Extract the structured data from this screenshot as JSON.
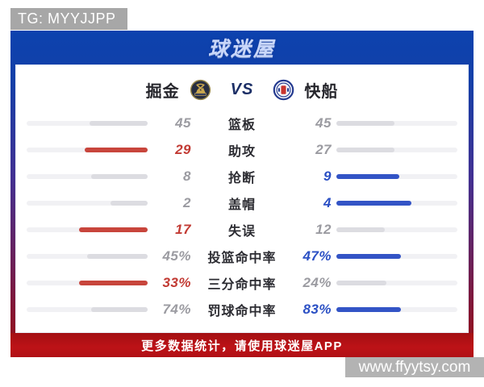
{
  "page": {
    "tg_tag": "TG: MYYJJPP",
    "watermark": "www.ffyytsy.com"
  },
  "header": {
    "logo_text": "球迷屋"
  },
  "match": {
    "home_team": "掘金",
    "vs_label": "VS",
    "away_team": "快船",
    "home_logo_icon": "nuggets-logo",
    "away_logo_icon": "clippers-logo"
  },
  "stats": {
    "rows": [
      {
        "label": "篮板",
        "left": "45",
        "right": "45",
        "left_fill": 48,
        "right_fill": 48,
        "left_state": "neutral",
        "right_state": "neutral"
      },
      {
        "label": "助攻",
        "left": "29",
        "right": "27",
        "left_fill": 52,
        "right_fill": 48,
        "left_state": "win",
        "right_state": "neutral"
      },
      {
        "label": "抢断",
        "left": "8",
        "right": "9",
        "left_fill": 47,
        "right_fill": 52,
        "left_state": "neutral",
        "right_state": "win"
      },
      {
        "label": "盖帽",
        "left": "2",
        "right": "4",
        "left_fill": 31,
        "right_fill": 62,
        "left_state": "neutral",
        "right_state": "win"
      },
      {
        "label": "失误",
        "left": "17",
        "right": "12",
        "left_fill": 57,
        "right_fill": 40,
        "left_state": "win",
        "right_state": "neutral"
      },
      {
        "label": "投篮命中率",
        "left": "45%",
        "right": "47%",
        "left_fill": 50,
        "right_fill": 53,
        "left_state": "neutral",
        "right_state": "win"
      },
      {
        "label": "三分命中率",
        "left": "33%",
        "right": "24%",
        "left_fill": 57,
        "right_fill": 41,
        "left_state": "win",
        "right_state": "neutral"
      },
      {
        "label": "罚球命中率",
        "left": "74%",
        "right": "83%",
        "left_fill": 47,
        "right_fill": 53,
        "left_state": "neutral",
        "right_state": "win"
      }
    ]
  },
  "footer": {
    "promo_text": "更多数据统计，请使用球迷屋APP"
  },
  "colors": {
    "accent_red": "#c23b34",
    "accent_blue": "#2b50c4",
    "bar_track": "#f1f1f4",
    "bar_neutral_fill": "#dcdce1",
    "bar_red_fill": "#c8453c",
    "bar_blue_fill": "#3354c6",
    "header_blue": "#0c42ae",
    "frame_bottom_maroon": "#951019",
    "footer_red": "#b01116",
    "tag_gray": "#a7a7a7",
    "watermark_gray": "#b3b3b3"
  },
  "chart_data": {
    "type": "bar",
    "title": "掘金 VS 快船 数据统计",
    "categories": [
      "篮板",
      "助攻",
      "抢断",
      "盖帽",
      "失误",
      "投篮命中率",
      "三分命中率",
      "罚球命中率"
    ],
    "series": [
      {
        "name": "掘金",
        "values": [
          45,
          29,
          8,
          2,
          17,
          45,
          33,
          74
        ]
      },
      {
        "name": "快船",
        "values": [
          45,
          27,
          9,
          4,
          12,
          47,
          24,
          83
        ]
      }
    ],
    "units_note": "last three categories are percentages",
    "legend_position": "top",
    "layout": "mirrored horizontal paired bars, winner highlighted (left=red, right=blue)"
  }
}
